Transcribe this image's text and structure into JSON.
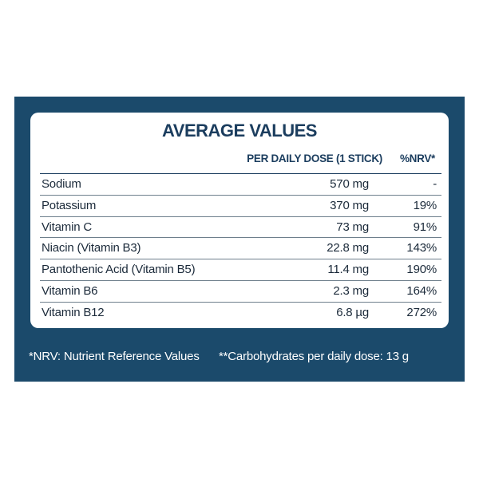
{
  "header": {
    "title": "AVERAGE VALUES"
  },
  "table": {
    "headers": [
      "PER DAILY DOSE (1 STICK)",
      "%NRV*"
    ],
    "rows": [
      [
        "Sodium",
        "570 mg",
        "-"
      ],
      [
        "Potassium",
        "370 mg",
        "19%"
      ],
      [
        "Vitamin C",
        "73 mg",
        "91%"
      ],
      [
        "Niacin (Vitamin B3)",
        "22.8 mg",
        "143%"
      ],
      [
        "Pantothenic Acid (Vitamin B5)",
        "11.4 mg",
        "190%"
      ],
      [
        "Vitamin B6",
        "2.3 mg",
        "164%"
      ],
      [
        "Vitamin B12",
        "6.8 µg",
        "272%"
      ]
    ]
  },
  "footnotes": [
    "*NRV: Nutrient Reference Values",
    "**Carbohydrates per daily dose: 13 g"
  ]
}
